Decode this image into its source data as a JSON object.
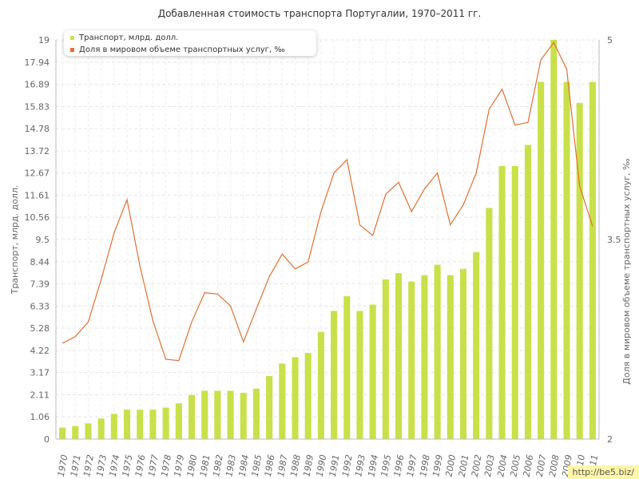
{
  "chart_data": {
    "type": "bar+line",
    "title": "Добавленная стоимость транспорта Португалии, 1970–2011 гг.",
    "ylabel_left": "Транспорт, млрд. долл.",
    "ylabel_right": "Доля в мировом объеме транспортных услуг, ‰",
    "categories": [
      "1970",
      "1971",
      "1972",
      "1973",
      "1974",
      "1975",
      "1976",
      "1977",
      "1978",
      "1979",
      "1980",
      "1981",
      "1982",
      "1983",
      "1984",
      "1985",
      "1986",
      "1987",
      "1988",
      "1989",
      "1990",
      "1991",
      "1992",
      "1993",
      "1994",
      "1995",
      "1996",
      "1997",
      "1998",
      "1999",
      "2000",
      "2001",
      "2002",
      "2003",
      "2004",
      "2005",
      "2006",
      "2007",
      "2008",
      "2009",
      "2010",
      "2011"
    ],
    "left_axis": {
      "ylim": [
        0,
        19
      ],
      "ticks": [
        "0",
        "1.06",
        "2.11",
        "3.17",
        "4.22",
        "5.28",
        "6.33",
        "7.39",
        "8.44",
        "9.5",
        "10.56",
        "11.61",
        "12.67",
        "13.72",
        "14.78",
        "15.83",
        "16.89",
        "17.94",
        "19"
      ]
    },
    "right_axis": {
      "ylim": [
        2,
        5
      ],
      "ticks": [
        "2",
        "3.5",
        "5"
      ]
    },
    "series": [
      {
        "name": "Транспорт, млрд. долл.",
        "type": "bar",
        "axis": "left",
        "color": "#c9e04a",
        "values": [
          0.55,
          0.62,
          0.75,
          0.98,
          1.2,
          1.4,
          1.4,
          1.4,
          1.5,
          1.7,
          2.1,
          2.3,
          2.3,
          2.3,
          2.2,
          2.4,
          3.0,
          3.6,
          3.9,
          4.1,
          5.1,
          6.1,
          6.8,
          6.1,
          6.4,
          7.6,
          7.9,
          7.5,
          7.8,
          8.3,
          7.8,
          8.1,
          8.9,
          11.0,
          13.0,
          13.0,
          14.0,
          17.0,
          19.0,
          17.0,
          16.0,
          17.0
        ]
      },
      {
        "name": "Доля в мировом объеме транспортных услуг, ‰",
        "type": "line",
        "axis": "right",
        "color": "#e07030",
        "values": [
          2.72,
          2.77,
          2.88,
          3.2,
          3.55,
          3.8,
          3.3,
          2.89,
          2.6,
          2.59,
          2.88,
          3.1,
          3.09,
          3.0,
          2.73,
          2.98,
          3.22,
          3.39,
          3.28,
          3.33,
          3.71,
          4.0,
          4.1,
          3.61,
          3.53,
          3.84,
          3.93,
          3.71,
          3.88,
          4.0,
          3.61,
          3.76,
          4.0,
          4.48,
          4.63,
          4.36,
          4.38,
          4.85,
          4.98,
          4.78,
          3.9,
          3.6
        ]
      }
    ],
    "grid": true,
    "legend_position": "top-left"
  },
  "watermark": "http://be5.biz/"
}
